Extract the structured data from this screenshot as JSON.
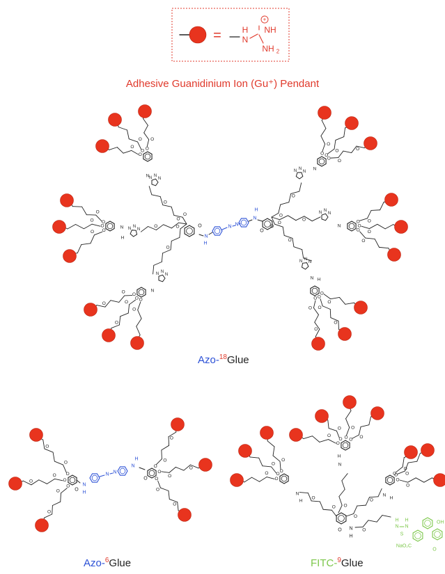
{
  "colors": {
    "ball": "#e8341e",
    "ball_edge": "#b8200e",
    "legend": "#e0392b",
    "azo": "#2b50d6",
    "core": "#222222",
    "fitc": "#7cc74a"
  },
  "legend": {
    "equals": "=",
    "gu_h": "H",
    "gu_n": "N",
    "gu_nh": "NH",
    "gu_nh2": "NH",
    "gu_sub2": "2",
    "gu_charge": "+",
    "title": "Adhesive Guanidinium Ion (Gu⁺) Pendant"
  },
  "labels": {
    "azo18": {
      "prefix": "Azo-",
      "number": "18",
      "suffix": "Glue"
    },
    "azo6": {
      "prefix": "Azo-",
      "number": "6",
      "suffix": "Glue"
    },
    "fitc9": {
      "prefix": "FITC-",
      "number": "9",
      "suffix": "Glue"
    }
  },
  "atoms": {
    "N": "N",
    "H": "H",
    "O": "O",
    "S": "S",
    "NH": "NH",
    "OH": "OH",
    "NaO2C": "NaO₂C"
  }
}
